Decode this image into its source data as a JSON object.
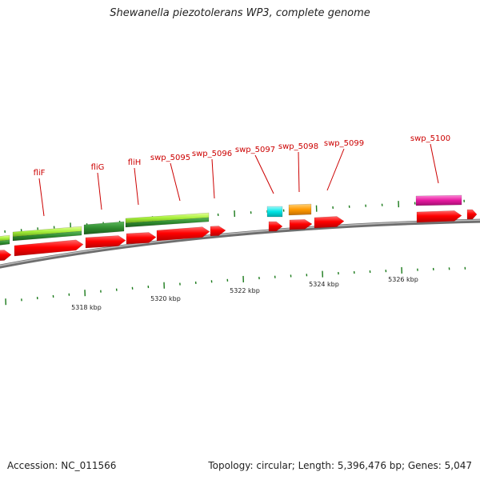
{
  "title": "Shewanella piezotolerans WP3, complete genome",
  "footer": {
    "accession": "Accession: NC_011566",
    "summary": "Topology: circular; Length: 5,396,476 bp; Genes: 5,047"
  },
  "colors": {
    "backbone": "#8c8c8c",
    "cds": "#ff0000",
    "label": "#cc0000",
    "tick": "#1a7a1a",
    "lime_feature": "#99e52e",
    "dark_green_feature": "#2e8b2e",
    "cyan_feature": "#00e5e5",
    "orange_feature": "#ff9900",
    "magenta_feature": "#e5199f"
  },
  "scale_labels": [
    "5318 kbp",
    "5320 kbp",
    "5322 kbp",
    "5324 kbp",
    "5326 kbp"
  ],
  "genes": [
    "fliF",
    "fliG",
    "fliH",
    "swp_5095",
    "swp_5096",
    "swp_5097",
    "swp_5098",
    "swp_5099",
    "swp_5100"
  ]
}
